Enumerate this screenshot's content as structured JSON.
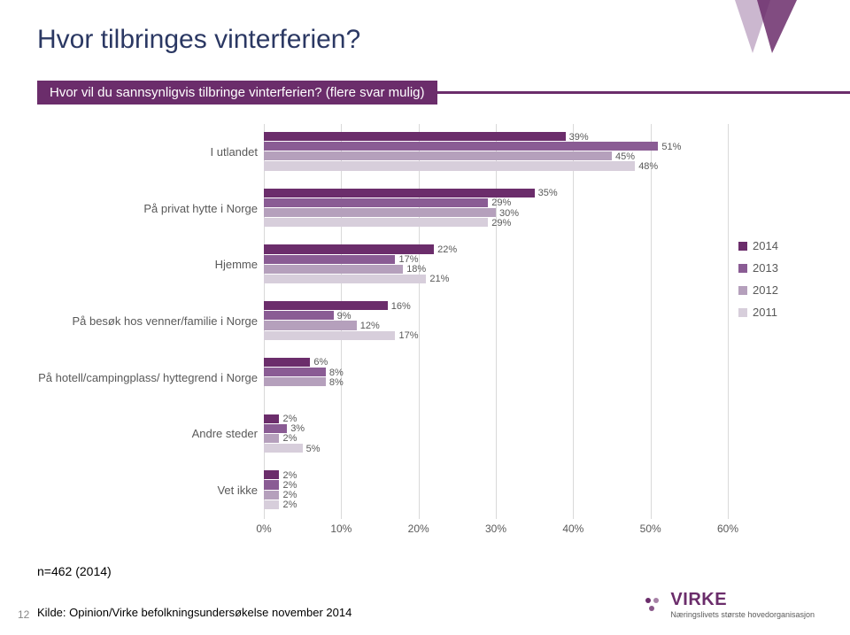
{
  "title": {
    "text": "Hvor tilbringes vinterferien?",
    "color": "#2b3863",
    "fontsize": 30
  },
  "subtitle": {
    "text": "Hvor vil du sannsynligvis tilbringe vinterferien? (flere svar mulig)",
    "bg": "#6b2d6b",
    "line": "#6b2d6b",
    "color": "#ffffff"
  },
  "chart": {
    "type": "bar-horizontal-grouped",
    "xlim": [
      0,
      60
    ],
    "xtick_step": 10,
    "x_ticks": [
      "0%",
      "10%",
      "20%",
      "30%",
      "40%",
      "50%",
      "60%"
    ],
    "grid_color": "#d9d9d9",
    "axis_color": "#bfbfbf",
    "text_color": "#595959",
    "label_fontsize": 13,
    "value_fontsize": 11,
    "series": [
      {
        "name": "2014",
        "color": "#6b2d6b"
      },
      {
        "name": "2013",
        "color": "#8a5c94"
      },
      {
        "name": "2012",
        "color": "#b5a0bc"
      },
      {
        "name": "2011",
        "color": "#d7cedb"
      }
    ],
    "categories": [
      {
        "label": "I utlandet",
        "values": [
          39,
          51,
          45,
          48
        ]
      },
      {
        "label": "På privat hytte i Norge",
        "values": [
          35,
          29,
          30,
          29
        ]
      },
      {
        "label": "Hjemme",
        "values": [
          22,
          17,
          18,
          21
        ]
      },
      {
        "label": "På besøk hos venner/familie i Norge",
        "values": [
          16,
          9,
          12,
          17
        ]
      },
      {
        "label": "På hotell/campingplass/ hyttegrend i Norge",
        "values": [
          6,
          8,
          8,
          null
        ],
        "value_labels": [
          "6%",
          "8%",
          "8%",
          ""
        ]
      },
      {
        "label": "Andre steder",
        "values": [
          2,
          3,
          2,
          5
        ]
      },
      {
        "label": "Vet ikke",
        "values": [
          2,
          2,
          2,
          2
        ]
      }
    ]
  },
  "legend": {
    "items": [
      {
        "label": "2014",
        "color": "#6b2d6b"
      },
      {
        "label": "2013",
        "color": "#8a5c94"
      },
      {
        "label": "2012",
        "color": "#b5a0bc"
      },
      {
        "label": "2011",
        "color": "#d7cedb"
      }
    ]
  },
  "n_label": "n=462 (2014)",
  "source": "Kilde: Opinion/Virke befolkningsundersøkelse november 2014",
  "page_number": "12",
  "logo": {
    "text": "VIRKE",
    "color": "#6b2d6b",
    "sub": "Næringslivets største hovedorganisasjon"
  },
  "accent": {
    "color1": "#6b2d6b",
    "color2": "#a17ba8"
  }
}
